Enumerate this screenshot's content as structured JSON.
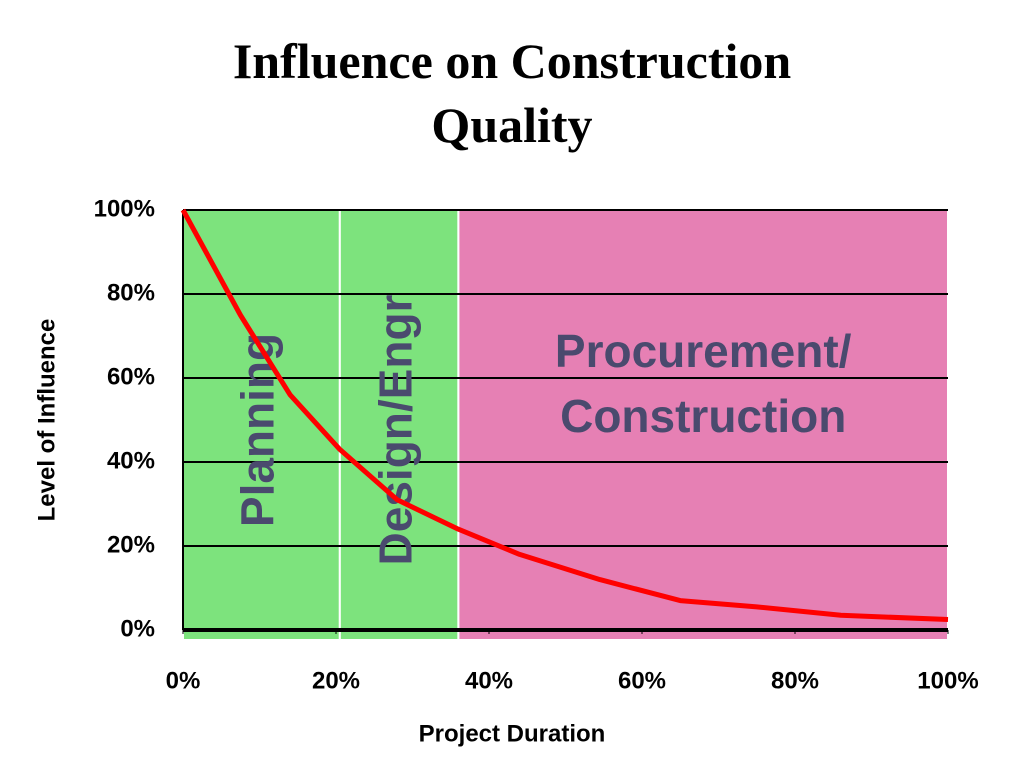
{
  "chart_data": {
    "type": "line",
    "title": "Influence on Construction Quality",
    "xlabel": "Project Duration",
    "ylabel": "Level of Influence",
    "x": [
      0,
      7.5,
      14,
      20.5,
      28,
      36,
      44,
      54.5,
      65,
      75,
      86,
      100
    ],
    "series": [
      {
        "name": "Level of Influence",
        "color": "#ff0000",
        "values": [
          100,
          75,
          56,
          43,
          31,
          24,
          18,
          12,
          7,
          5.5,
          3.5,
          2.5
        ]
      }
    ],
    "regions": [
      {
        "lines": [
          "Planning"
        ],
        "start": 0,
        "end": 20.5,
        "color": "#7de37d"
      },
      {
        "lines": [
          "Design/Engr"
        ],
        "start": 20.5,
        "end": 36,
        "color": "#7de37d"
      },
      {
        "lines": [
          "Procurement/",
          "Construction"
        ],
        "start": 36,
        "end": 100,
        "color": "#e680b4"
      }
    ],
    "xlim": [
      0,
      100
    ],
    "xticks": [
      {
        "value": 0,
        "label": "0%"
      },
      {
        "value": 20,
        "label": "20%"
      },
      {
        "value": 40,
        "label": "40%"
      },
      {
        "value": 60,
        "label": "60%"
      },
      {
        "value": 80,
        "label": "80%"
      },
      {
        "value": 100,
        "label": "100%"
      }
    ],
    "ylim": [
      0,
      100
    ],
    "yticks": [
      {
        "value": 0,
        "label": "0%"
      },
      {
        "value": 20,
        "label": "20%"
      },
      {
        "value": 40,
        "label": "40%"
      },
      {
        "value": 60,
        "label": "60%"
      },
      {
        "value": 80,
        "label": "80%"
      },
      {
        "value": 100,
        "label": "100%"
      }
    ],
    "grid": true
  }
}
